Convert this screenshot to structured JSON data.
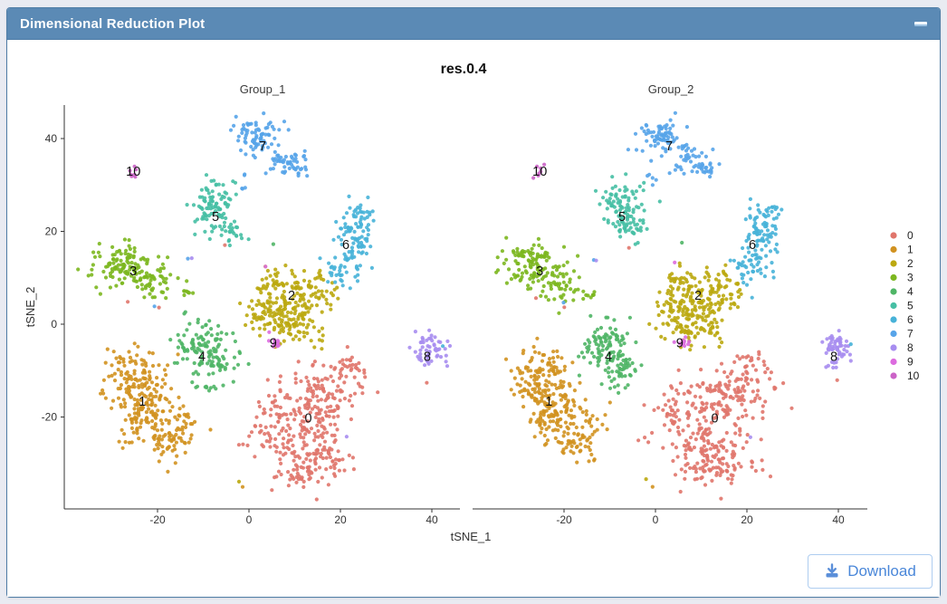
{
  "window": {
    "title": "Dimensional Reduction Plot",
    "minimize": ""
  },
  "download": {
    "label": "Download"
  },
  "chart_data": {
    "type": "scatter",
    "title": "res.0.4",
    "xlabel": "tSNE_1",
    "ylabel": "tSNE_2",
    "facets": [
      "Group_1",
      "Group_2"
    ],
    "x_ticks": [
      -20,
      0,
      20,
      40
    ],
    "y_ticks": [
      40,
      20,
      0,
      -20
    ],
    "xlim": [
      -40,
      46
    ],
    "ylim": [
      -40,
      47
    ],
    "legend_position": "right",
    "grid": false,
    "clusters": [
      {
        "id": "0",
        "color": "#E0756B",
        "label_pos": [
          13,
          -20.2
        ],
        "blobs": [
          [
            8,
            -21,
            4.5,
            4.5,
            130
          ],
          [
            17,
            -15,
            4,
            3.5,
            110
          ],
          [
            15,
            -29,
            3.5,
            3,
            90
          ],
          [
            22,
            -9.5,
            2,
            1.5,
            22
          ],
          [
            9,
            -32,
            2.5,
            2,
            25
          ]
        ]
      },
      {
        "id": "1",
        "color": "#D19220",
        "label_pos": [
          -23.3,
          -16.6
        ],
        "blobs": [
          [
            -25,
            -11.5,
            3.5,
            3,
            110
          ],
          [
            -23,
            -19,
            3.5,
            3.5,
            120
          ],
          [
            -17.5,
            -25.5,
            2.5,
            2,
            50
          ],
          [
            -13.5,
            -21,
            1.5,
            2,
            18
          ]
        ]
      },
      {
        "id": "2",
        "color": "#BBA80F",
        "label_pos": [
          9.3,
          6.2
        ],
        "blobs": [
          [
            6,
            2.5,
            3.5,
            3,
            110
          ],
          [
            13,
            7,
            3.5,
            2.5,
            85
          ],
          [
            10,
            -1.5,
            3,
            2,
            45
          ],
          [
            5.5,
            9.5,
            2,
            1.5,
            25
          ]
        ]
      },
      {
        "id": "3",
        "color": "#7CB71F",
        "label_pos": [
          -25.3,
          11.5
        ],
        "blobs": [
          [
            -27,
            12.5,
            3.5,
            2.5,
            115
          ],
          [
            -21,
            9,
            2.5,
            2,
            45
          ],
          [
            -13.8,
            6.5,
            1,
            0.8,
            8
          ]
        ]
      },
      {
        "id": "4",
        "color": "#4FB566",
        "label_pos": [
          -10.3,
          -6.9
        ],
        "blobs": [
          [
            -10.5,
            -4.5,
            3,
            2.5,
            90
          ],
          [
            -7,
            -9,
            2.5,
            2,
            40
          ],
          [
            -9.5,
            -13.5,
            1.2,
            1.2,
            8
          ]
        ]
      },
      {
        "id": "5",
        "color": "#46BFA4",
        "label_pos": [
          -7.3,
          23.2
        ],
        "blobs": [
          [
            -7.5,
            25.5,
            2.2,
            2.8,
            90
          ],
          [
            -4.5,
            20.5,
            1.5,
            1.5,
            25
          ]
        ]
      },
      {
        "id": "6",
        "color": "#47B2D8",
        "label_pos": [
          21.2,
          17.2
        ],
        "blobs": [
          [
            23,
            19,
            1.8,
            3,
            70
          ],
          [
            20.5,
            12.5,
            1.8,
            2,
            40
          ],
          [
            25,
            23.5,
            1.5,
            1.5,
            20
          ]
        ]
      },
      {
        "id": "7",
        "color": "#57A4E9",
        "label_pos": [
          3.0,
          38.4
        ],
        "blobs": [
          [
            1.5,
            40.5,
            2.8,
            2,
            75
          ],
          [
            7.5,
            35.5,
            2,
            1.5,
            35
          ],
          [
            11,
            33.5,
            1.5,
            1,
            18
          ],
          [
            -1,
            30.5,
            0.6,
            1.2,
            5
          ]
        ]
      },
      {
        "id": "8",
        "color": "#A78DF0",
        "label_pos": [
          39.0,
          -6.9
        ],
        "blobs": [
          [
            39.5,
            -5.5,
            1.7,
            1.9,
            55
          ]
        ]
      },
      {
        "id": "9",
        "color": "#DC6BDF",
        "label_pos": [
          5.3,
          -4.0
        ],
        "blobs": [
          [
            5.5,
            -3.8,
            0.8,
            0.7,
            11
          ]
        ]
      },
      {
        "id": "10",
        "color": "#CB63C7",
        "label_pos": [
          -25.3,
          33.0
        ],
        "blobs": [
          [
            -25.3,
            33.1,
            0.6,
            0.7,
            7
          ]
        ]
      }
    ],
    "extras": [
      {
        "c": 0,
        "x": -5.3,
        "y": 16.5
      },
      {
        "c": 0,
        "x": -26.7,
        "y": 5.3
      },
      {
        "c": 0,
        "x": 39.2,
        "y": -12.5
      },
      {
        "c": 7,
        "x": -13.6,
        "y": 14.4
      },
      {
        "c": 8,
        "x": -13,
        "y": 14.1
      },
      {
        "c": 9,
        "x": 4.2,
        "y": 12.7
      },
      {
        "c": 4,
        "x": 5.5,
        "y": 17
      },
      {
        "c": 6,
        "x": 42.8,
        "y": -4.9
      },
      {
        "c": 8,
        "x": 20.8,
        "y": -24.4
      },
      {
        "c": 2,
        "x": -2.6,
        "y": -33.8
      },
      {
        "c": 7,
        "x": -20.4,
        "y": 4.1
      },
      {
        "c": 5,
        "x": -2.4,
        "y": 30.6
      },
      {
        "c": 1,
        "x": -1,
        "y": -35
      },
      {
        "c": 4,
        "x": -14,
        "y": 2
      },
      {
        "c": 0,
        "x": -20,
        "y": 3.5
      }
    ]
  }
}
